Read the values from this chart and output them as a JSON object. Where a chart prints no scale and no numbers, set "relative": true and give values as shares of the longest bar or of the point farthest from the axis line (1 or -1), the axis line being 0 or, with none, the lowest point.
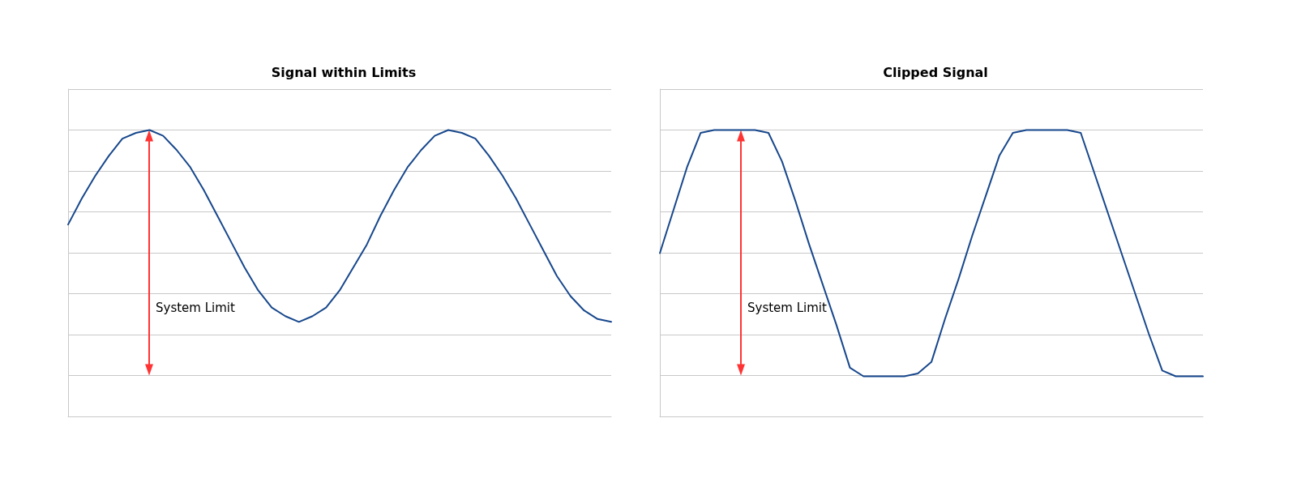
{
  "chart_data": [
    {
      "type": "line",
      "title": "Signal within Limits",
      "relative": true,
      "grid": "y",
      "annotations": [
        "System Limit"
      ],
      "categories": [
        null,
        null,
        null,
        null,
        null,
        null,
        null,
        null,
        null,
        null,
        null,
        null,
        null,
        null,
        null,
        null,
        null,
        null,
        null,
        null,
        null,
        null,
        null,
        null,
        null,
        null,
        null,
        null,
        null,
        null,
        null,
        null,
        null,
        null,
        null,
        null,
        null,
        null,
        null,
        null,
        null
      ],
      "series": [
        {
          "color": "#17478c",
          "values": [
            0.67,
            0.76,
            0.84,
            0.91,
            0.97,
            0.99,
            1,
            0.98,
            0.93,
            0.87,
            0.79,
            0.7,
            0.61,
            0.52,
            0.44,
            0.38,
            0.35,
            0.33,
            0.35,
            0.38,
            0.44,
            0.52,
            0.6,
            0.7,
            0.79,
            0.87,
            0.93,
            0.98,
            1,
            0.99,
            0.97,
            0.91,
            0.84,
            0.76,
            0.67,
            0.58,
            0.49,
            0.42,
            0.37,
            0.34,
            0.33
          ]
        }
      ]
    },
    {
      "type": "line",
      "title": "Clipped Signal",
      "relative": true,
      "grid": "y",
      "annotations": [
        "System Limit"
      ],
      "categories": [
        null,
        null,
        null,
        null,
        null,
        null,
        null,
        null,
        null,
        null,
        null,
        null,
        null,
        null,
        null,
        null,
        null,
        null,
        null,
        null,
        null,
        null,
        null,
        null,
        null,
        null,
        null,
        null,
        null,
        null,
        null,
        null,
        null,
        null,
        null,
        null,
        null,
        null,
        null,
        null,
        null
      ],
      "series": [
        {
          "color": "#17478c",
          "values": [
            0.57,
            0.72,
            0.87,
            0.99,
            1,
            1,
            1,
            1,
            0.99,
            0.89,
            0.75,
            0.6,
            0.46,
            0.32,
            0.17,
            0.14,
            0.14,
            0.14,
            0.14,
            0.15,
            0.19,
            0.34,
            0.48,
            0.63,
            0.77,
            0.91,
            0.99,
            1,
            1,
            1,
            1,
            0.99,
            0.85,
            0.71,
            0.57,
            0.43,
            0.29,
            0.16,
            0.14,
            0.14,
            0.14
          ]
        }
      ]
    }
  ]
}
